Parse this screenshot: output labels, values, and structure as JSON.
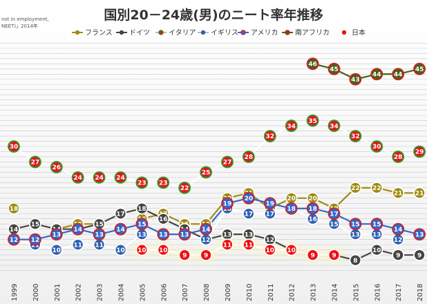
{
  "chart_data": {
    "type": "line",
    "title": "国別20－24歳(男)のニート率年推移",
    "source_lines": [
      "not in employment,",
      "NEET)」2014年"
    ],
    "categories": [
      "1999",
      "2000",
      "2001",
      "2002",
      "2003",
      "2004",
      "2005",
      "2006",
      "2007",
      "2008",
      "2009",
      "2010",
      "2011",
      "2012",
      "2013",
      "2014",
      "2015",
      "2016",
      "2017",
      "2018"
    ],
    "series": [
      {
        "name": "フランス",
        "color": "#a08a10",
        "values": [
          18,
          null,
          14,
          15,
          15,
          null,
          16,
          17,
          15,
          15,
          20,
          21,
          18,
          20,
          20,
          18,
          22,
          22,
          21,
          21
        ]
      },
      {
        "name": "ドイツ",
        "color": "#444444",
        "values": [
          14,
          15,
          14,
          14,
          15,
          17,
          18,
          16,
          14,
          12,
          13,
          13,
          12,
          10,
          9,
          9,
          8,
          10,
          9,
          9
        ]
      },
      {
        "name": "イタリア",
        "color": "#ffffff",
        "marker": "#2aa02a",
        "values": [
          30,
          27,
          26,
          24,
          24,
          24,
          23,
          23,
          22,
          25,
          27,
          28,
          32,
          34,
          35,
          34,
          32,
          30,
          28,
          29
        ]
      },
      {
        "name": "イギリス",
        "color": "#ffffff",
        "marker": "#3060b0",
        "values": [
          12,
          11,
          10,
          11,
          11,
          10,
          13,
          13,
          13,
          12,
          18,
          17,
          17,
          18,
          16,
          15,
          13,
          13,
          12,
          13
        ]
      },
      {
        "name": "アメリカ",
        "color": "#3366cc",
        "marker": "#d42020",
        "values": [
          12,
          12,
          13,
          14,
          13,
          14,
          15,
          13,
          13,
          14,
          19,
          20,
          19,
          18,
          18,
          17,
          15,
          15,
          14,
          13
        ]
      },
      {
        "name": "南アフリカ",
        "color": "#4a5e18",
        "marker": "#d42020",
        "values": [
          null,
          null,
          null,
          null,
          null,
          null,
          null,
          null,
          null,
          null,
          null,
          null,
          null,
          null,
          46,
          45,
          43,
          44,
          44,
          45
        ]
      },
      {
        "name": "日本",
        "color": "#ffffff",
        "marker": "#ee1111",
        "values": [
          null,
          null,
          null,
          null,
          null,
          null,
          10,
          10,
          9,
          9,
          11,
          11,
          10,
          10,
          9,
          9,
          null,
          null,
          null,
          null
        ]
      }
    ],
    "ylim": [
      4,
      52
    ],
    "grid": true,
    "legend": "top"
  }
}
